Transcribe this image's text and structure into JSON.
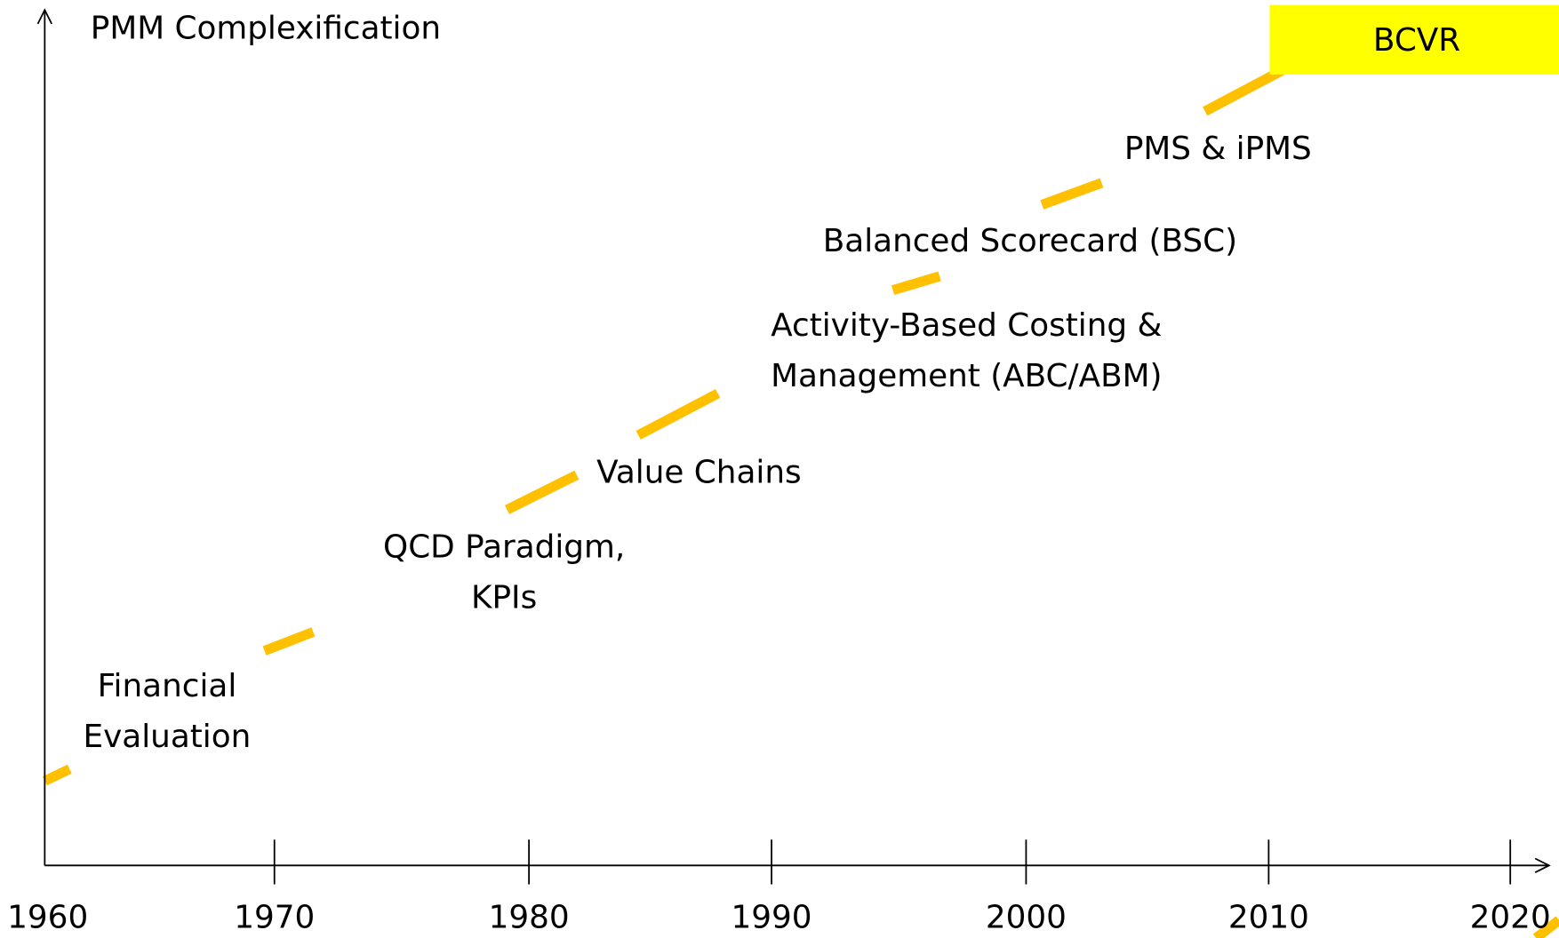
{
  "y_axis_label": "PMM Complexification",
  "x_axis_ticks": [
    "1960",
    "1970",
    "1980",
    "1990",
    "2000",
    "2010",
    "2020"
  ],
  "stages": [
    {
      "lines": [
        "Financial",
        "Evaluation"
      ]
    },
    {
      "lines": [
        "QCD Paradigm,",
        "KPIs"
      ]
    },
    {
      "lines": [
        "Value Chains"
      ]
    },
    {
      "lines": [
        "Activity-Based Costing &",
        "Management (ABC/ABM)"
      ]
    },
    {
      "lines": [
        "Balanced Scorecard (BSC)"
      ]
    },
    {
      "lines": [
        "PMS & iPMS"
      ]
    }
  ],
  "highlight": "BCVR"
}
